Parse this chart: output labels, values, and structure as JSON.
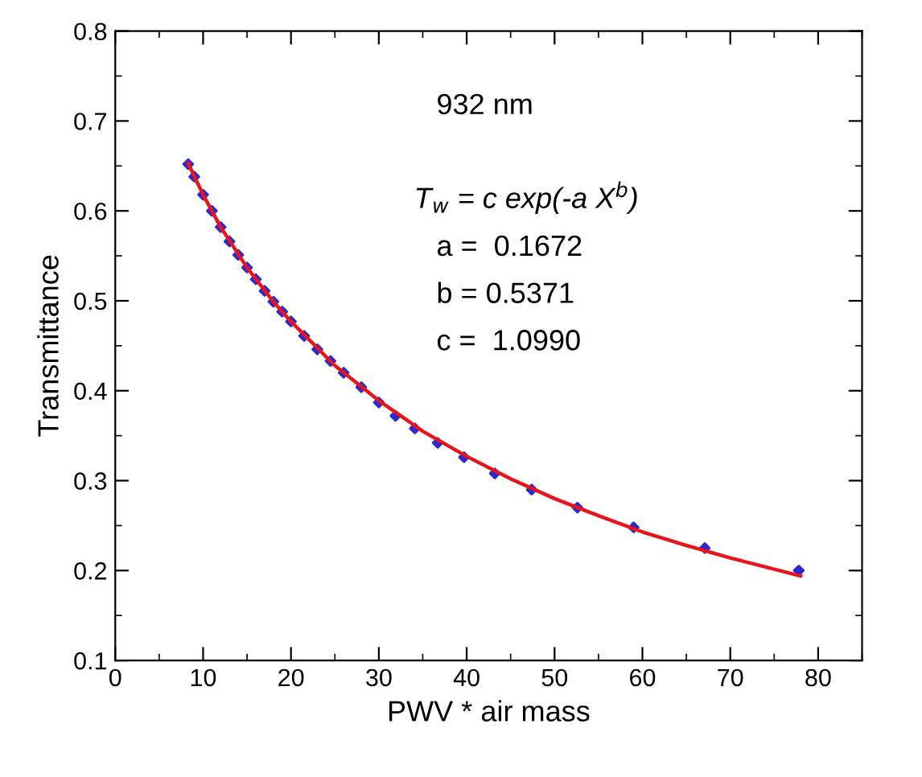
{
  "chart_data": {
    "type": "scatter",
    "xlabel": "PWV * air mass",
    "ylabel": "Transmittance",
    "xlim": [
      0,
      85
    ],
    "xticks": [
      0,
      10,
      20,
      30,
      40,
      50,
      60,
      70,
      80
    ],
    "ylim": [
      0.1,
      0.8
    ],
    "yticks": [
      0.1,
      0.2,
      0.3,
      0.4,
      0.5,
      0.6,
      0.7,
      0.8
    ],
    "grid": false,
    "marker": "diamond",
    "annotations": [
      "932 nm",
      "T$_{w}$ = c exp(-a X$^{b}$)",
      "a =  0.1672",
      "b = 0.5371",
      "c =  1.0990"
    ],
    "series": [
      {
        "color": "#2a2ad0",
        "x": [
          8.3,
          9,
          10,
          11,
          12,
          13,
          14,
          15,
          16,
          17,
          18,
          19,
          20,
          21.5,
          23,
          24.5,
          26,
          28,
          30.0,
          31.9,
          34.1,
          36.7,
          39.7,
          43.2,
          47.4,
          52.6,
          59.0,
          67.1,
          77.8
        ],
        "values": [
          0.652,
          0.638,
          0.618,
          0.6,
          0.582,
          0.566,
          0.551,
          0.537,
          0.524,
          0.511,
          0.499,
          0.488,
          0.477,
          0.461,
          0.446,
          0.433,
          0.42,
          0.404,
          0.387,
          0.372,
          0.358,
          0.342,
          0.326,
          0.308,
          0.29,
          0.27,
          0.248,
          0.225,
          0.2
        ]
      },
      {
        "type": "line",
        "color": "#e8141c",
        "marker": "none",
        "line_style": "solid",
        "x": [
          8.3,
          10,
          12,
          15,
          18,
          20,
          25,
          30,
          35,
          40,
          45,
          50,
          55,
          60,
          65,
          70,
          78
        ],
        "values": [
          0.653,
          0.618,
          0.582,
          0.537,
          0.499,
          0.477,
          0.428,
          0.389,
          0.355,
          0.327,
          0.302,
          0.28,
          0.261,
          0.243,
          0.228,
          0.214,
          0.194
        ]
      }
    ]
  }
}
